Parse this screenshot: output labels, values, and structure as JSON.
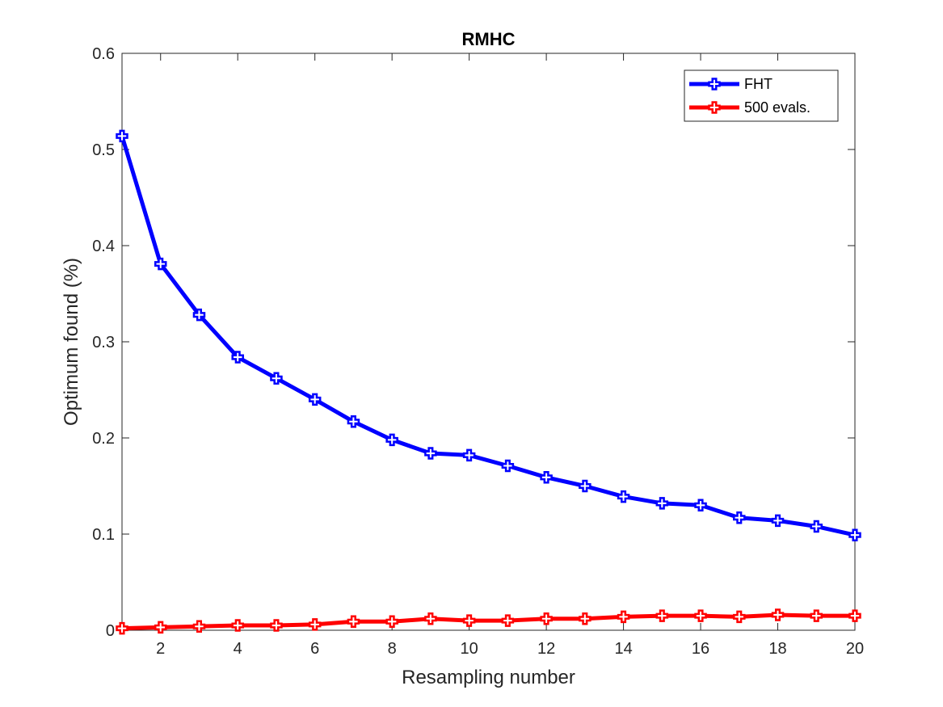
{
  "chart_data": {
    "type": "line",
    "title": "RMHC",
    "xlabel": "Resampling number",
    "ylabel": "Optimum found (%)",
    "x": [
      1,
      2,
      3,
      4,
      5,
      6,
      7,
      8,
      9,
      10,
      11,
      12,
      13,
      14,
      15,
      16,
      17,
      18,
      19,
      20
    ],
    "xlim": [
      1,
      20
    ],
    "ylim": [
      0,
      0.6
    ],
    "xticks": [
      2,
      4,
      6,
      8,
      10,
      12,
      14,
      16,
      18,
      20
    ],
    "yticks": [
      0,
      0.1,
      0.2,
      0.3,
      0.4,
      0.5,
      0.6
    ],
    "xtick_labels": [
      "2",
      "4",
      "6",
      "8",
      "10",
      "12",
      "14",
      "16",
      "18",
      "20"
    ],
    "ytick_labels": [
      "0",
      "0.1",
      "0.2",
      "0.3",
      "0.4",
      "0.5",
      "0.6"
    ],
    "grid": false,
    "legend_position": "top-right",
    "series": [
      {
        "name": "FHT",
        "color": "#0000ff",
        "marker": "cross",
        "values": [
          0.514,
          0.381,
          0.328,
          0.284,
          0.262,
          0.24,
          0.217,
          0.198,
          0.184,
          0.182,
          0.171,
          0.159,
          0.15,
          0.139,
          0.132,
          0.13,
          0.117,
          0.114,
          0.108,
          0.099
        ]
      },
      {
        "name": "500 evals.",
        "color": "#ff0000",
        "marker": "cross",
        "values": [
          0.002,
          0.003,
          0.004,
          0.005,
          0.005,
          0.006,
          0.009,
          0.009,
          0.012,
          0.01,
          0.01,
          0.012,
          0.012,
          0.014,
          0.015,
          0.015,
          0.014,
          0.016,
          0.015,
          0.015
        ]
      }
    ]
  }
}
